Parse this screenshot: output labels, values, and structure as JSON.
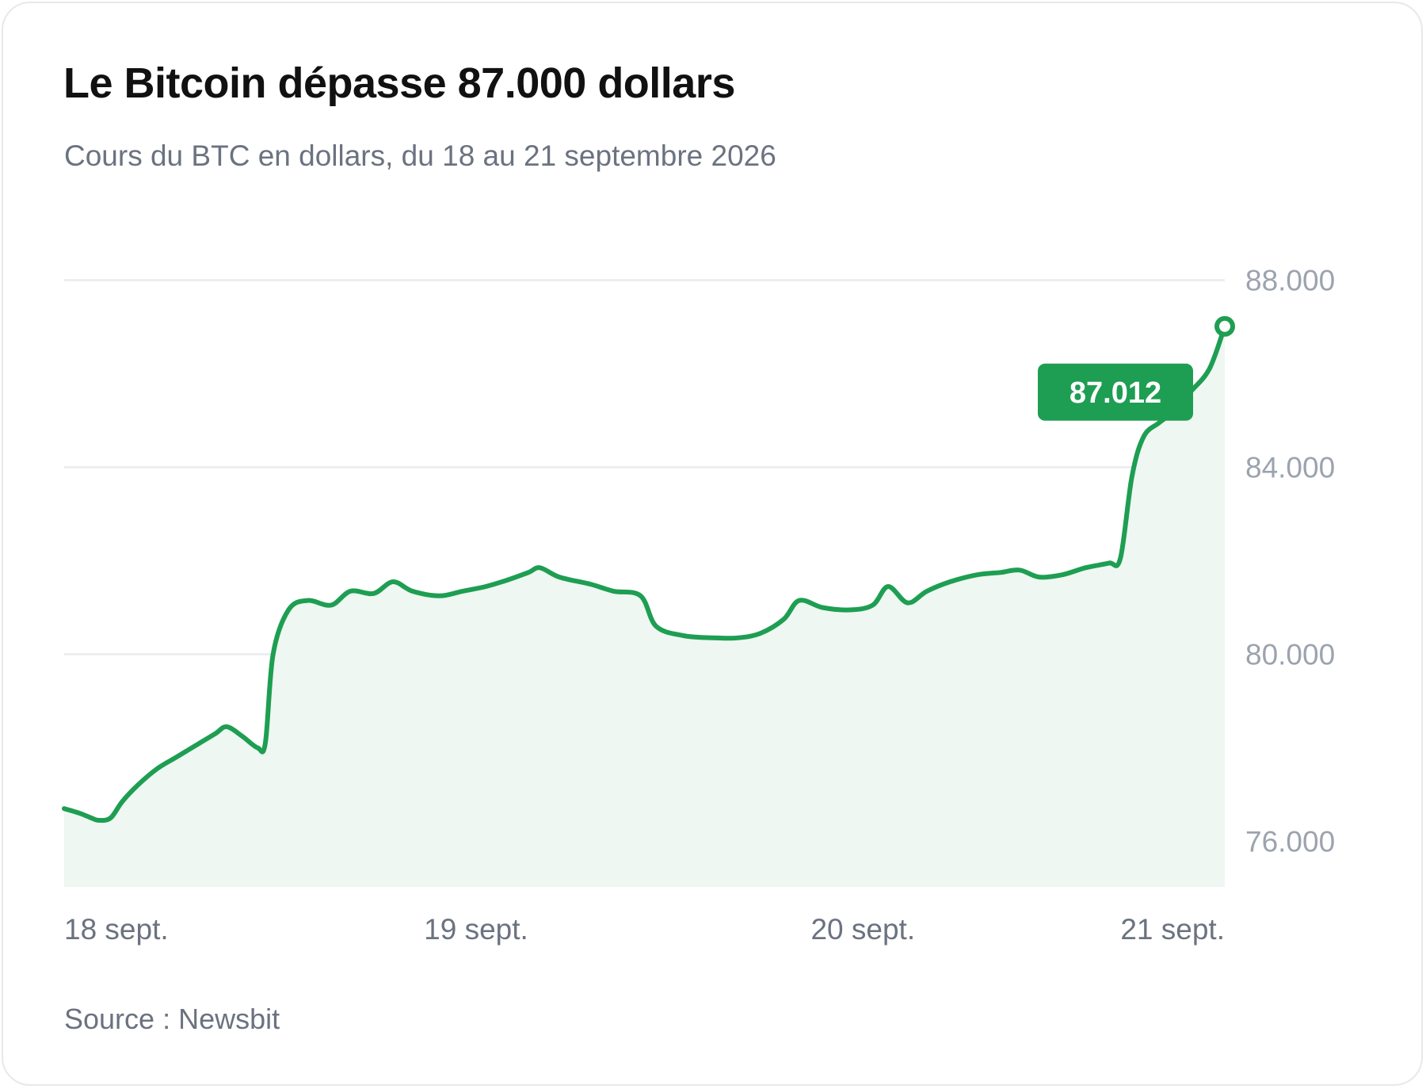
{
  "header": {
    "title": "Le Bitcoin dépasse 87.000 dollars",
    "subtitle": "Cours du BTC en dollars, du 18 au 21 septembre 2026"
  },
  "footer": {
    "source": "Source : Newsbit"
  },
  "colors": {
    "line": "#1e9e52",
    "area": "#eef7f1",
    "grid": "#e9ebee",
    "badge": "#1e9e52"
  },
  "chart_data": {
    "type": "area",
    "title": "Le Bitcoin dépasse 87.000 dollars",
    "ylim": [
      75000,
      88000
    ],
    "y_ticks": [
      {
        "value": 88000,
        "label": "88.000"
      },
      {
        "value": 84000,
        "label": "84.000"
      },
      {
        "value": 80000,
        "label": "80.000"
      },
      {
        "value": 76000,
        "label": "76.000"
      }
    ],
    "x_ticks": [
      {
        "value": 0,
        "label": "18 sept."
      },
      {
        "value": 0.93,
        "label": "19 sept."
      },
      {
        "value": 1.93,
        "label": "20 sept."
      },
      {
        "value": 3.0,
        "label": "21 sept."
      }
    ],
    "xlim": [
      0,
      3.0
    ],
    "grid": true,
    "annotation": {
      "label": "87.012",
      "value": 87012
    },
    "series": [
      {
        "values": [
          [
            0.0,
            76700
          ],
          [
            0.04,
            76600
          ],
          [
            0.07,
            76500
          ],
          [
            0.09,
            76450
          ],
          [
            0.12,
            76500
          ],
          [
            0.15,
            76850
          ],
          [
            0.19,
            77200
          ],
          [
            0.24,
            77550
          ],
          [
            0.29,
            77800
          ],
          [
            0.34,
            78050
          ],
          [
            0.39,
            78300
          ],
          [
            0.42,
            78450
          ],
          [
            0.46,
            78250
          ],
          [
            0.5,
            78000
          ],
          [
            0.52,
            78100
          ],
          [
            0.54,
            80000
          ],
          [
            0.58,
            80950
          ],
          [
            0.63,
            81150
          ],
          [
            0.69,
            81050
          ],
          [
            0.74,
            81350
          ],
          [
            0.8,
            81300
          ],
          [
            0.85,
            81550
          ],
          [
            0.9,
            81350
          ],
          [
            0.97,
            81250
          ],
          [
            1.03,
            81350
          ],
          [
            1.09,
            81450
          ],
          [
            1.15,
            81600
          ],
          [
            1.2,
            81750
          ],
          [
            1.23,
            81850
          ],
          [
            1.28,
            81650
          ],
          [
            1.36,
            81500
          ],
          [
            1.42,
            81350
          ],
          [
            1.49,
            81250
          ],
          [
            1.53,
            80600
          ],
          [
            1.6,
            80400
          ],
          [
            1.68,
            80350
          ],
          [
            1.74,
            80350
          ],
          [
            1.8,
            80450
          ],
          [
            1.86,
            80750
          ],
          [
            1.9,
            81150
          ],
          [
            1.96,
            81000
          ],
          [
            2.03,
            80950
          ],
          [
            2.09,
            81050
          ],
          [
            2.13,
            81450
          ],
          [
            2.18,
            81100
          ],
          [
            2.23,
            81350
          ],
          [
            2.29,
            81550
          ],
          [
            2.36,
            81700
          ],
          [
            2.42,
            81750
          ],
          [
            2.47,
            81800
          ],
          [
            2.52,
            81650
          ],
          [
            2.58,
            81700
          ],
          [
            2.64,
            81850
          ],
          [
            2.7,
            81950
          ],
          [
            2.73,
            82050
          ],
          [
            2.76,
            83800
          ],
          [
            2.79,
            84650
          ],
          [
            2.83,
            84950
          ],
          [
            2.87,
            85200
          ],
          [
            2.91,
            85600
          ],
          [
            2.96,
            86100
          ],
          [
            3.0,
            87012
          ]
        ]
      }
    ]
  }
}
